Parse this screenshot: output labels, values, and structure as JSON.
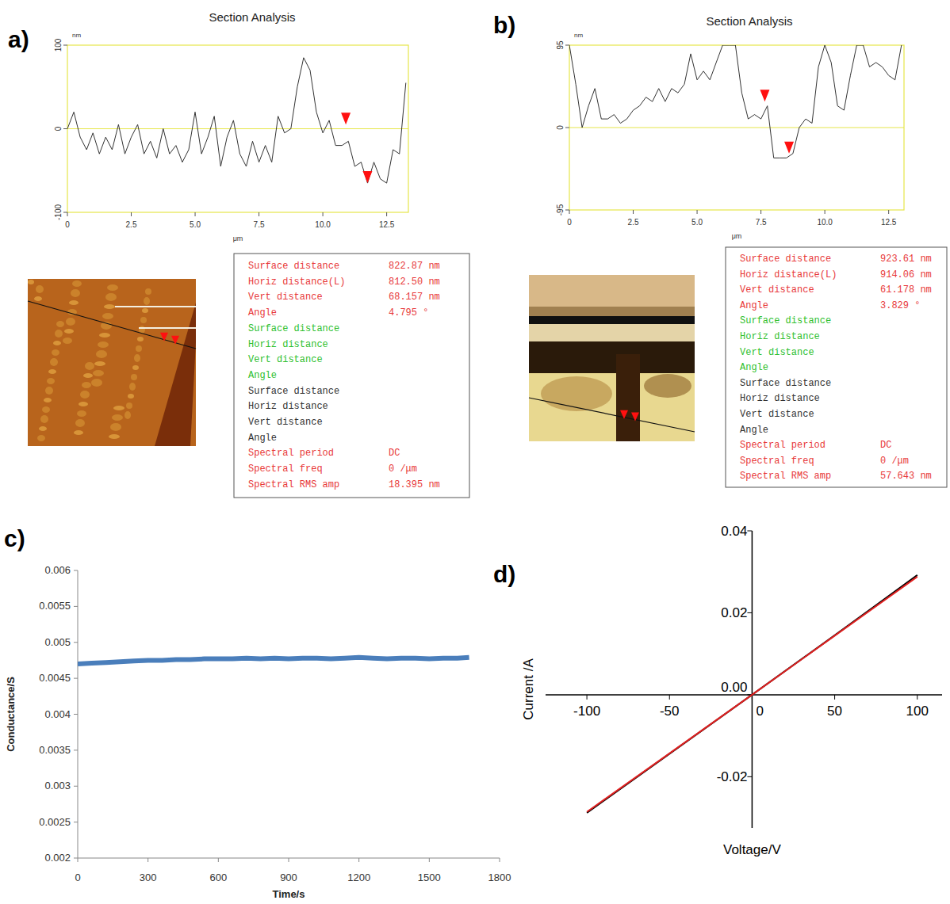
{
  "chart_data": [
    {
      "type": "line",
      "panel_label": "a)",
      "title": "Section Analysis",
      "x_label": "μm",
      "y_label": "nm",
      "color": "#333333",
      "x": [
        0,
        0.25,
        0.5,
        0.75,
        1,
        1.25,
        1.5,
        1.75,
        2,
        2.25,
        2.5,
        2.75,
        3,
        3.25,
        3.5,
        3.75,
        4,
        4.25,
        4.5,
        4.75,
        5,
        5.25,
        5.5,
        5.75,
        6,
        6.25,
        6.5,
        6.75,
        7,
        7.25,
        7.5,
        7.75,
        8,
        8.25,
        8.5,
        8.75,
        9,
        9.25,
        9.5,
        9.75,
        10,
        10.25,
        10.5,
        10.75,
        11,
        11.25,
        11.5,
        11.75,
        12,
        12.25,
        12.5,
        12.75,
        13,
        13.25
      ],
      "values": [
        0,
        20,
        -10,
        -25,
        -5,
        -30,
        -10,
        -25,
        5,
        -30,
        -10,
        5,
        -30,
        -15,
        -35,
        0,
        -30,
        -20,
        -40,
        -25,
        20,
        -30,
        -10,
        15,
        -45,
        -10,
        10,
        -30,
        -45,
        -15,
        -40,
        -20,
        -40,
        15,
        -5,
        0,
        50,
        85,
        70,
        20,
        -5,
        10,
        -20,
        -20,
        -15,
        -45,
        -40,
        -65,
        -40,
        -60,
        -65,
        -25,
        -30,
        55
      ],
      "xlim": [
        0,
        13.35
      ],
      "ylim": [
        -100,
        100
      ],
      "xticks": [
        0,
        2.5,
        {
          "value": 5,
          "label": "5.0"
        },
        7.5,
        {
          "value": 10,
          "label": "10.0"
        },
        12.5
      ],
      "yticks": [
        -100,
        0,
        100
      ],
      "cursors": {
        "x": [
          10.9,
          11.75
        ],
        "y": [
          5,
          -65
        ]
      }
    },
    {
      "type": "line",
      "panel_label": "b)",
      "title": "Section Analysis",
      "x_label": "μm",
      "y_label": "nm",
      "color": "#333333",
      "x": [
        0,
        0.25,
        0.5,
        0.75,
        1,
        1.25,
        1.5,
        1.75,
        2,
        2.25,
        2.5,
        2.75,
        3,
        3.25,
        3.5,
        3.75,
        4,
        4.25,
        4.5,
        4.75,
        5,
        5.25,
        5.5,
        5.75,
        6,
        6.25,
        6.5,
        6.75,
        7,
        7.25,
        7.5,
        7.75,
        8,
        8.25,
        8.5,
        8.75,
        9,
        9.25,
        9.5,
        9.75,
        10,
        10.25,
        10.5,
        10.75,
        11,
        11.25,
        11.5,
        11.75,
        12,
        12.25,
        12.5,
        12.75,
        13
      ],
      "values": [
        95,
        50,
        0,
        25,
        45,
        10,
        10,
        15,
        5,
        10,
        20,
        25,
        35,
        30,
        45,
        30,
        45,
        40,
        50,
        85,
        55,
        65,
        55,
        75,
        95,
        95,
        95,
        40,
        10,
        15,
        10,
        25,
        -35,
        -35,
        -35,
        -30,
        0,
        10,
        5,
        70,
        95,
        75,
        25,
        20,
        60,
        95,
        95,
        70,
        75,
        70,
        60,
        55,
        95
      ],
      "xlim": [
        0,
        13.1
      ],
      "ylim": [
        -95,
        95
      ],
      "xticks": [
        0,
        2.5,
        {
          "value": 5,
          "label": "5.0"
        },
        7.5,
        {
          "value": 10,
          "label": "10.0"
        },
        12.5
      ],
      "yticks": [
        -95,
        0,
        95
      ],
      "cursors": {
        "x": [
          7.65,
          8.6
        ],
        "y": [
          30,
          -30
        ]
      }
    },
    {
      "type": "line",
      "panel_label": "c)",
      "x_label": "Time/s",
      "y_label": "Conductance/S",
      "color": "#4a7ebb",
      "x": [
        0,
        60,
        120,
        180,
        240,
        300,
        360,
        420,
        480,
        540,
        600,
        660,
        720,
        780,
        840,
        900,
        960,
        1020,
        1080,
        1140,
        1200,
        1260,
        1320,
        1380,
        1440,
        1500,
        1560,
        1620,
        1670
      ],
      "values": [
        0.0047,
        0.00471,
        0.00472,
        0.00473,
        0.00474,
        0.00475,
        0.00475,
        0.00476,
        0.00476,
        0.00477,
        0.00477,
        0.00477,
        0.00478,
        0.00477,
        0.00478,
        0.00477,
        0.00478,
        0.00478,
        0.00477,
        0.00478,
        0.00479,
        0.00478,
        0.00477,
        0.00478,
        0.00478,
        0.00477,
        0.00478,
        0.00478,
        0.00479
      ],
      "xlim": [
        0,
        1800
      ],
      "ylim": [
        0.002,
        0.006
      ],
      "xticks": [
        0,
        300,
        600,
        900,
        1200,
        1500,
        1800
      ],
      "yticks": [
        0.002,
        0.0025,
        0.003,
        0.0035,
        0.004,
        0.0045,
        0.005,
        0.0055,
        0.006
      ]
    },
    {
      "type": "line",
      "panel_label": "d)",
      "x_label": "Voltage/V",
      "y_label": "Current /A",
      "x": [
        -100,
        -50,
        0,
        50,
        100
      ],
      "series": [
        {
          "color": "#000000",
          "values": [
            -0.0288,
            -0.0144,
            0,
            0.0145,
            0.0292
          ]
        },
        {
          "color": "#e02020",
          "values": [
            -0.0286,
            -0.0143,
            0,
            0.0144,
            0.0288
          ]
        }
      ],
      "xlim": [
        -125,
        115
      ],
      "ylim": [
        -0.0325,
        0.04
      ],
      "xticks": [
        -100,
        -50,
        0,
        50,
        100
      ],
      "yticks": [
        -0.02,
        {
          "value": 0,
          "label": "0.00"
        },
        0.02,
        0.04
      ]
    }
  ],
  "tables": [
    {
      "groups": [
        {
          "color": "#e8393a",
          "rows": [
            [
              "Surface distance",
              "822.87 nm"
            ],
            [
              "Horiz distance(L)",
              "812.50 nm"
            ],
            [
              "Vert distance",
              "68.157 nm"
            ],
            [
              "Angle",
              "4.795 °"
            ]
          ]
        },
        {
          "color": "#2fbf2f",
          "rows": [
            [
              "Surface distance"
            ],
            [
              "Horiz distance"
            ],
            [
              "Vert distance"
            ],
            [
              "Angle"
            ]
          ]
        },
        {
          "color": "#333333",
          "rows": [
            [
              "Surface distance"
            ],
            [
              "Horiz distance"
            ],
            [
              "Vert distance"
            ],
            [
              "Angle"
            ]
          ]
        },
        {
          "color": "#e8393a",
          "rows": [
            [
              "Spectral period",
              "DC"
            ],
            [
              "Spectral freq",
              "0 /μm"
            ],
            [
              "Spectral RMS amp",
              "18.395 nm"
            ]
          ]
        }
      ]
    },
    {
      "groups": [
        {
          "color": "#e8393a",
          "rows": [
            [
              "Surface distance",
              "923.61 nm"
            ],
            [
              "Horiz distance(L)",
              "914.06 nm"
            ],
            [
              "Vert distance",
              "61.178 nm"
            ],
            [
              "Angle",
              "3.829 °"
            ]
          ]
        },
        {
          "color": "#2fbf2f",
          "rows": [
            [
              "Surface distance"
            ],
            [
              "Horiz distance"
            ],
            [
              "Vert distance"
            ],
            [
              "Angle"
            ]
          ]
        },
        {
          "color": "#333333",
          "rows": [
            [
              "Surface distance"
            ],
            [
              "Horiz distance"
            ],
            [
              "Vert distance"
            ],
            [
              "Angle"
            ]
          ]
        },
        {
          "color": "#e8393a",
          "rows": [
            [
              "Spectral period",
              "DC"
            ],
            [
              "Spectral freq",
              "0 /μm"
            ],
            [
              "Spectral RMS amp",
              "57.643 nm"
            ]
          ]
        }
      ]
    }
  ]
}
